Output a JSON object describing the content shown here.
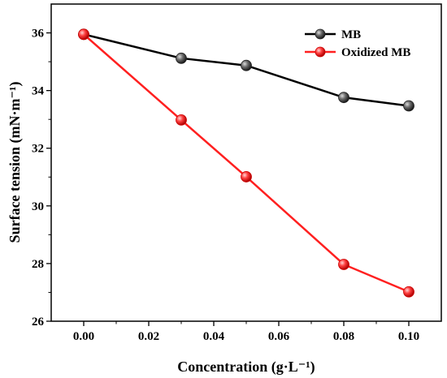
{
  "chart_data": {
    "type": "line",
    "xlabel": "Concentration (g·L⁻¹)",
    "ylabel": "Surface tension (mN·m⁻¹)",
    "xlim": [
      -0.01,
      0.11
    ],
    "ylim": [
      26,
      37
    ],
    "xticks": [
      "0.00",
      "0.02",
      "0.04",
      "0.06",
      "0.08",
      "0.10"
    ],
    "yticks": [
      "26",
      "28",
      "30",
      "32",
      "34",
      "36"
    ],
    "legend_position": "top-right",
    "grid": false,
    "series": [
      {
        "name": "MB",
        "color": "#000000",
        "marker_color": "#3a3a3a",
        "x": [
          0.0,
          0.03,
          0.05,
          0.08,
          0.1
        ],
        "y": [
          35.95,
          35.12,
          34.87,
          33.76,
          33.47
        ]
      },
      {
        "name": "Oxidized MB",
        "color": "#ff2020",
        "marker_color": "#ff3030",
        "x": [
          0.0,
          0.03,
          0.05,
          0.08,
          0.1
        ],
        "y": [
          35.95,
          32.98,
          31.01,
          27.97,
          27.02
        ]
      }
    ]
  }
}
